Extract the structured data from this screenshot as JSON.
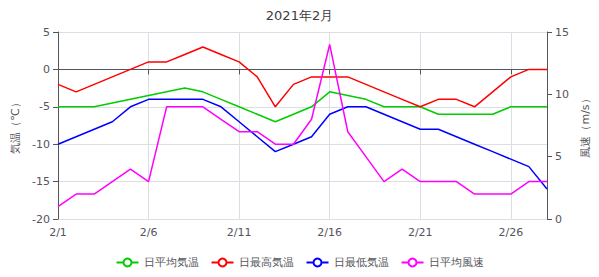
{
  "chart_data": {
    "type": "line",
    "title": "2021年2月",
    "ylabel": "気温（℃）",
    "y2label": "風速（m/s）",
    "x": [
      1,
      2,
      3,
      4,
      5,
      6,
      7,
      8,
      9,
      10,
      11,
      12,
      13,
      14,
      15,
      16,
      17,
      18,
      19,
      20,
      21,
      22,
      23,
      24,
      25,
      26,
      27,
      28
    ],
    "xlim": [
      1,
      28
    ],
    "xticks": [
      {
        "value": 1,
        "label": "2/1"
      },
      {
        "value": 6,
        "label": "2/6"
      },
      {
        "value": 11,
        "label": "2/11"
      },
      {
        "value": 16,
        "label": "2/16"
      },
      {
        "value": 21,
        "label": "2/21"
      },
      {
        "value": 26,
        "label": "2/26"
      }
    ],
    "ylim": [
      -20,
      5
    ],
    "yticks": [
      -20,
      -15,
      -10,
      -5,
      0,
      5
    ],
    "y2lim": [
      0,
      15
    ],
    "y2ticks": [
      0,
      5,
      10,
      15
    ],
    "grid": true,
    "legend": "bottom",
    "series": [
      {
        "name": "日平均気温",
        "color": "#00cc00",
        "values": [
          -5,
          -5,
          -5,
          -4.5,
          -4,
          -3.5,
          -3,
          -2.5,
          -3,
          -4,
          -5,
          -6,
          -7,
          -6,
          -5,
          -3,
          -3.5,
          -4,
          -5,
          -5,
          -5,
          -6,
          -6,
          -6,
          -6,
          -5,
          -5,
          -5
        ]
      },
      {
        "name": "日最高気温",
        "color": "#ff0000",
        "values": [
          -2,
          -3,
          -2,
          -1,
          0,
          1,
          1,
          2,
          3,
          2,
          1,
          -1,
          -5,
          -2,
          -1,
          -1,
          -1,
          -2,
          -3,
          -4,
          -5,
          -4,
          -4,
          -5,
          -3,
          -1,
          0,
          0
        ]
      },
      {
        "name": "日最低気温",
        "color": "#0000ff",
        "values": [
          -10,
          -9,
          -8,
          -7,
          -5,
          -4,
          -4,
          -4,
          -4,
          -5,
          -7,
          -9,
          -11,
          -10,
          -9,
          -6,
          -5,
          -5,
          -6,
          -7,
          -8,
          -8,
          -9,
          -10,
          -11,
          -12,
          -13,
          -16
        ]
      },
      {
        "name": "日平均風速",
        "color": "#ff00ff",
        "axis": "y2",
        "values": [
          1,
          2,
          2,
          3,
          4,
          3,
          9,
          9,
          9,
          8,
          7,
          7,
          6,
          6,
          8,
          14,
          7,
          5,
          3,
          4,
          3,
          3,
          3,
          2,
          2,
          2,
          3,
          3
        ]
      }
    ]
  }
}
